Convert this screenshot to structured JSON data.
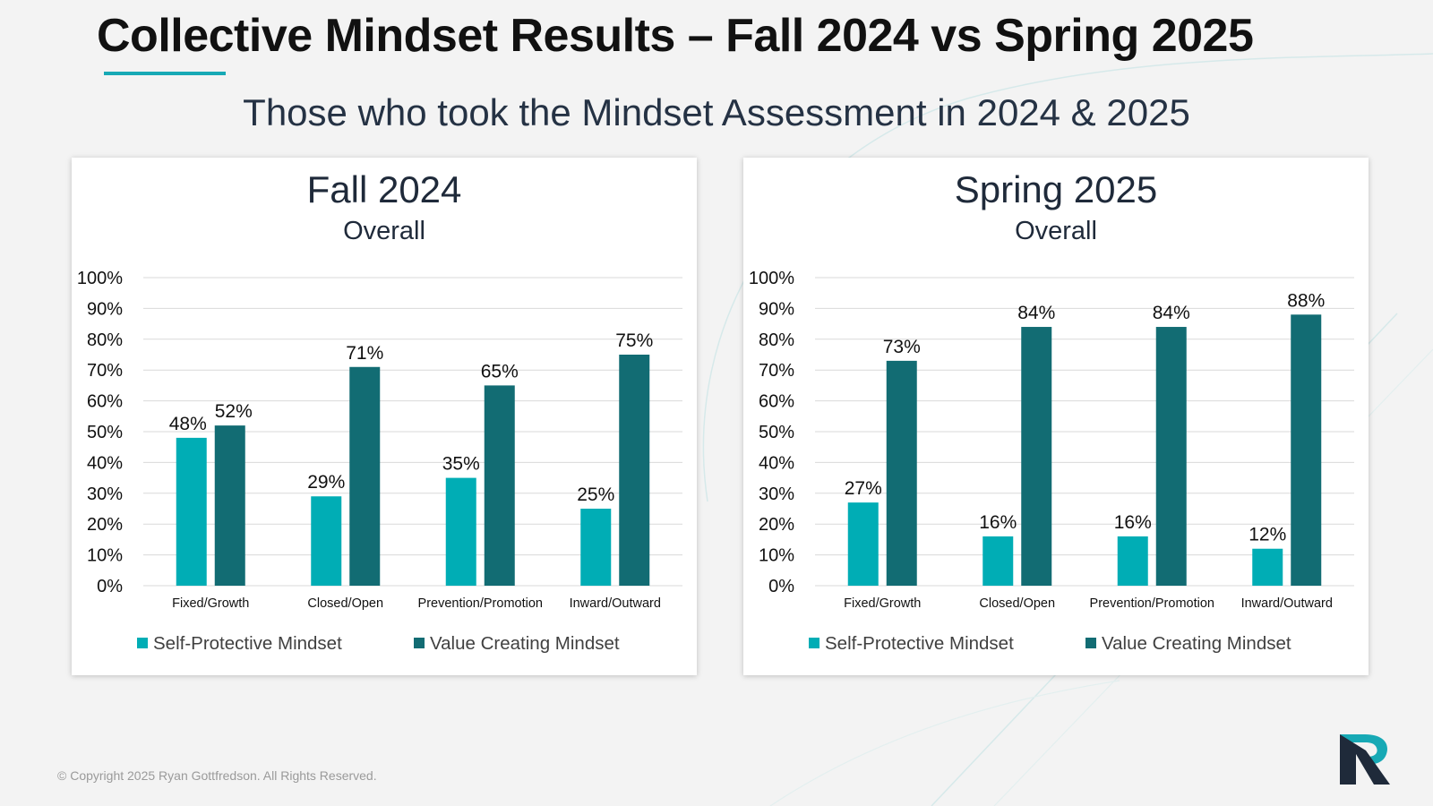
{
  "slide": {
    "title": "Collective Mindset Results – Fall 2024 vs Spring 2025",
    "subtitle": "Those who took the Mindset Assessment in 2024 & 2025",
    "copyright": "© Copyright 2025  Ryan Gottfredson. All Rights Reserved.",
    "logo_icon": "rg-logo-icon"
  },
  "colors": {
    "self_protective": "#00adb5",
    "value_creating": "#126c73",
    "accent": "#17a9b5",
    "gridline": "#d9d9d9",
    "text": "#1f2a3a"
  },
  "chart_data": [
    {
      "type": "bar",
      "title": "Fall 2024",
      "subtitle": "Overall",
      "categories": [
        "Fixed/Growth",
        "Closed/Open",
        "Prevention/Promotion",
        "Inward/Outward"
      ],
      "series": [
        {
          "name": "Self-Protective Mindset",
          "values": [
            48,
            29,
            35,
            25
          ]
        },
        {
          "name": "Value Creating Mindset",
          "values": [
            52,
            71,
            65,
            75
          ]
        }
      ],
      "data_labels": [
        [
          "48%",
          "29%",
          "35%",
          "25%"
        ],
        [
          "52%",
          "71%",
          "65%",
          "75%"
        ]
      ],
      "ylim": [
        0,
        100
      ],
      "yticks": [
        "0%",
        "10%",
        "20%",
        "30%",
        "40%",
        "50%",
        "60%",
        "70%",
        "80%",
        "90%",
        "100%"
      ],
      "xlabel": "",
      "ylabel": "",
      "grid": true,
      "legend_position": "bottom"
    },
    {
      "type": "bar",
      "title": "Spring 2025",
      "subtitle": "Overall",
      "categories": [
        "Fixed/Growth",
        "Closed/Open",
        "Prevention/Promotion",
        "Inward/Outward"
      ],
      "series": [
        {
          "name": "Self-Protective Mindset",
          "values": [
            27,
            16,
            16,
            12
          ]
        },
        {
          "name": "Value Creating Mindset",
          "values": [
            73,
            84,
            84,
            88
          ]
        }
      ],
      "data_labels": [
        [
          "27%",
          "16%",
          "16%",
          "12%"
        ],
        [
          "73%",
          "84%",
          "84%",
          "88%"
        ]
      ],
      "ylim": [
        0,
        100
      ],
      "yticks": [
        "0%",
        "10%",
        "20%",
        "30%",
        "40%",
        "50%",
        "60%",
        "70%",
        "80%",
        "90%",
        "100%"
      ],
      "xlabel": "",
      "ylabel": "",
      "grid": true,
      "legend_position": "bottom"
    }
  ]
}
